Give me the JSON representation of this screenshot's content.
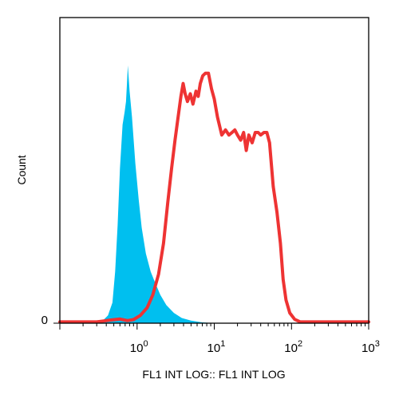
{
  "chart_data": {
    "type": "area",
    "title": "",
    "xlabel": "FL1 INT LOG:: FL1 INT LOG",
    "ylabel": "Count",
    "x_scale": "log",
    "xlim": [
      0.1,
      1000
    ],
    "ylim": [
      0,
      100
    ],
    "y_tick_labels": [
      "0"
    ],
    "x_ticks": [
      {
        "value": 1,
        "base": "10",
        "exp": "0"
      },
      {
        "value": 10,
        "base": "10",
        "exp": "1"
      },
      {
        "value": 100,
        "base": "10",
        "exp": "2"
      },
      {
        "value": 1000,
        "base": "10",
        "exp": "3"
      }
    ],
    "grid": false,
    "series": [
      {
        "style": "filled",
        "color": "#00BFEF",
        "points": [
          [
            0.1,
            0
          ],
          [
            0.3,
            0
          ],
          [
            0.36,
            1
          ],
          [
            0.42,
            3
          ],
          [
            0.48,
            8
          ],
          [
            0.52,
            20
          ],
          [
            0.56,
            38
          ],
          [
            0.6,
            60
          ],
          [
            0.65,
            77
          ],
          [
            0.69,
            82
          ],
          [
            0.72,
            86
          ],
          [
            0.74,
            93
          ],
          [
            0.76,
            100
          ],
          [
            0.8,
            90
          ],
          [
            0.86,
            80
          ],
          [
            0.95,
            62
          ],
          [
            1.05,
            48
          ],
          [
            1.15,
            37
          ],
          [
            1.3,
            27
          ],
          [
            1.5,
            20
          ],
          [
            1.7,
            16
          ],
          [
            2.0,
            11
          ],
          [
            2.4,
            7
          ],
          [
            3.0,
            4
          ],
          [
            3.8,
            2
          ],
          [
            5.0,
            1
          ],
          [
            7.0,
            0.3
          ],
          [
            10,
            0
          ],
          [
            1000,
            0
          ]
        ]
      },
      {
        "style": "line",
        "color": "#EE3333",
        "points": [
          [
            0.1,
            0.5
          ],
          [
            0.3,
            0.5
          ],
          [
            0.45,
            1.2
          ],
          [
            0.6,
            1.6
          ],
          [
            0.75,
            1.0
          ],
          [
            0.9,
            1.4
          ],
          [
            1.1,
            3
          ],
          [
            1.35,
            6
          ],
          [
            1.6,
            11
          ],
          [
            1.9,
            19
          ],
          [
            2.2,
            31
          ],
          [
            2.5,
            47
          ],
          [
            2.8,
            60
          ],
          [
            3.1,
            71
          ],
          [
            3.4,
            80
          ],
          [
            3.7,
            88
          ],
          [
            3.95,
            93
          ],
          [
            4.2,
            89
          ],
          [
            4.5,
            86
          ],
          [
            4.9,
            89
          ],
          [
            5.3,
            85
          ],
          [
            5.8,
            90
          ],
          [
            6.2,
            88
          ],
          [
            6.6,
            93
          ],
          [
            7.1,
            96
          ],
          [
            7.7,
            97
          ],
          [
            8.4,
            97
          ],
          [
            9.2,
            91
          ],
          [
            10,
            87
          ],
          [
            11,
            80
          ],
          [
            12.5,
            73
          ],
          [
            14,
            75
          ],
          [
            15.5,
            73
          ],
          [
            17,
            74
          ],
          [
            18.5,
            75
          ],
          [
            20,
            73
          ],
          [
            22,
            71
          ],
          [
            24,
            74
          ],
          [
            26,
            67
          ],
          [
            28,
            73
          ],
          [
            31,
            70
          ],
          [
            34,
            74
          ],
          [
            37,
            74
          ],
          [
            40,
            73
          ],
          [
            44,
            74
          ],
          [
            48,
            74
          ],
          [
            52,
            70
          ],
          [
            58,
            53
          ],
          [
            65,
            43
          ],
          [
            72,
            31
          ],
          [
            78,
            17
          ],
          [
            85,
            9
          ],
          [
            95,
            4
          ],
          [
            110,
            1.5
          ],
          [
            130,
            0.5
          ],
          [
            1000,
            0.5
          ]
        ]
      }
    ]
  }
}
